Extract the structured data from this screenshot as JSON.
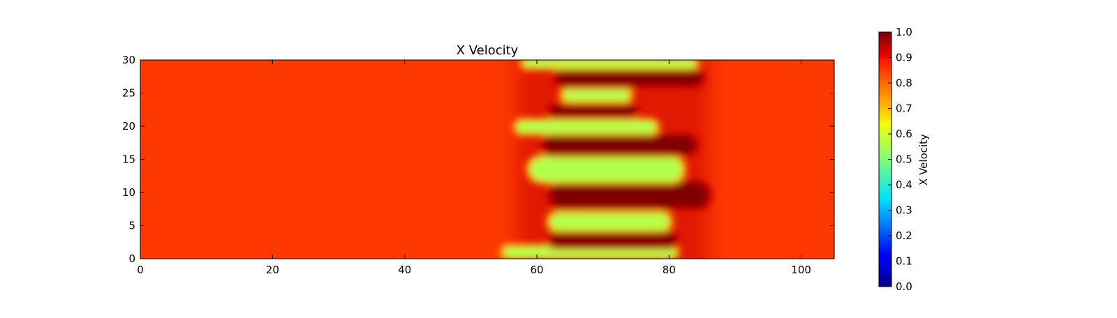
{
  "chart_data": {
    "type": "heatmap",
    "title": "X Velocity",
    "xlabel": "",
    "ylabel": "",
    "xlim": [
      0,
      105
    ],
    "ylim": [
      0,
      30
    ],
    "xticks": [
      0,
      20,
      40,
      60,
      80,
      100
    ],
    "yticks": [
      0,
      5,
      10,
      15,
      20,
      25,
      30
    ],
    "colormap": "jet",
    "colorbar": {
      "label": "X Velocity",
      "range": [
        0.0,
        1.0
      ],
      "ticks": [
        "0.0",
        "0.1",
        "0.2",
        "0.3",
        "0.4",
        "0.5",
        "0.6",
        "0.7",
        "0.8",
        "0.9",
        "1.0"
      ]
    },
    "background_value": 0.82,
    "band_x_range": [
      57,
      86
    ],
    "fingers": [
      {
        "value": 0.55,
        "y": 1.0,
        "x_start": 55,
        "x_end": 81,
        "thickness": 1.6
      },
      {
        "value": 1.0,
        "y": 2.9,
        "x_start": 62,
        "x_end": 81,
        "thickness": 2.2
      },
      {
        "value": 0.55,
        "y": 5.6,
        "x_start": 62,
        "x_end": 80,
        "thickness": 2.4
      },
      {
        "value": 1.0,
        "y": 9.6,
        "x_start": 62,
        "x_end": 86,
        "thickness": 3.8
      },
      {
        "value": 0.55,
        "y": 13.5,
        "x_start": 59,
        "x_end": 82,
        "thickness": 3.6
      },
      {
        "value": 1.0,
        "y": 17.2,
        "x_start": 61,
        "x_end": 84,
        "thickness": 2.8
      },
      {
        "value": 0.55,
        "y": 19.9,
        "x_start": 57,
        "x_end": 78,
        "thickness": 1.8
      },
      {
        "value": 1.0,
        "y": 22.3,
        "x_start": 62,
        "x_end": 75,
        "thickness": 1.6
      },
      {
        "value": 0.55,
        "y": 24.7,
        "x_start": 64,
        "x_end": 74,
        "thickness": 1.6
      },
      {
        "value": 1.0,
        "y": 27.3,
        "x_start": 63,
        "x_end": 85,
        "thickness": 2.4
      },
      {
        "value": 0.55,
        "y": 29.5,
        "x_start": 58,
        "x_end": 84,
        "thickness": 1.2
      }
    ],
    "grid": false,
    "legend": "none"
  }
}
